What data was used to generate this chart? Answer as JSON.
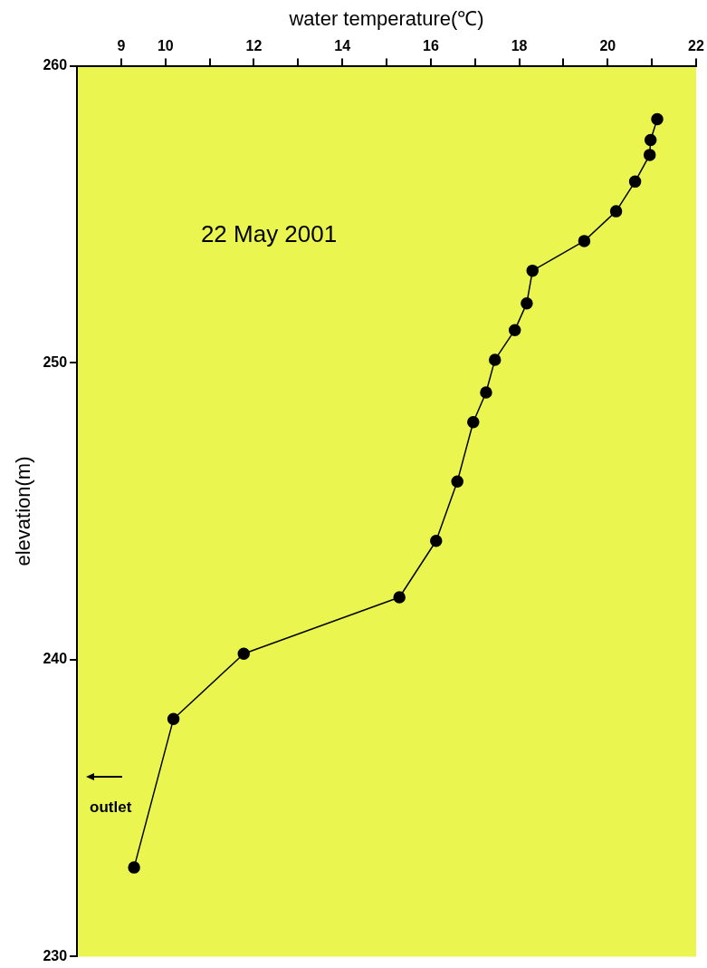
{
  "chart_data": {
    "type": "line",
    "xlabel": "water temperature(℃)",
    "ylabel": "elevation(m)",
    "annotations": [
      "22 May 2001",
      "outlet"
    ],
    "xlim": [
      8,
      22
    ],
    "xticks": [
      9,
      10,
      {
        "value": 11,
        "label": null
      },
      12,
      {
        "value": 13,
        "label": null
      },
      14,
      {
        "value": 15,
        "label": null
      },
      16,
      {
        "value": 17,
        "label": null
      },
      18,
      {
        "value": 19,
        "label": null
      },
      20,
      {
        "value": 21,
        "label": null
      },
      22
    ],
    "ylim": [
      230,
      260
    ],
    "yticks": [
      230,
      240,
      250,
      260
    ],
    "grid": false,
    "legend": false,
    "marker": "circle",
    "line_style": "solid",
    "series": [
      {
        "color": "#000000",
        "x": [
          9.29,
          10.18,
          11.77,
          15.29,
          16.12,
          16.6,
          16.96,
          17.25,
          17.45,
          17.9,
          18.17,
          18.3,
          19.47,
          20.19,
          20.62,
          20.95,
          20.97,
          21.12
        ],
        "values": [
          233.0,
          238.0,
          240.2,
          242.1,
          244.0,
          246.0,
          248.0,
          249.0,
          250.1,
          251.1,
          252.0,
          253.1,
          254.1,
          255.1,
          256.1,
          257.0,
          257.5,
          258.2
        ]
      }
    ]
  }
}
